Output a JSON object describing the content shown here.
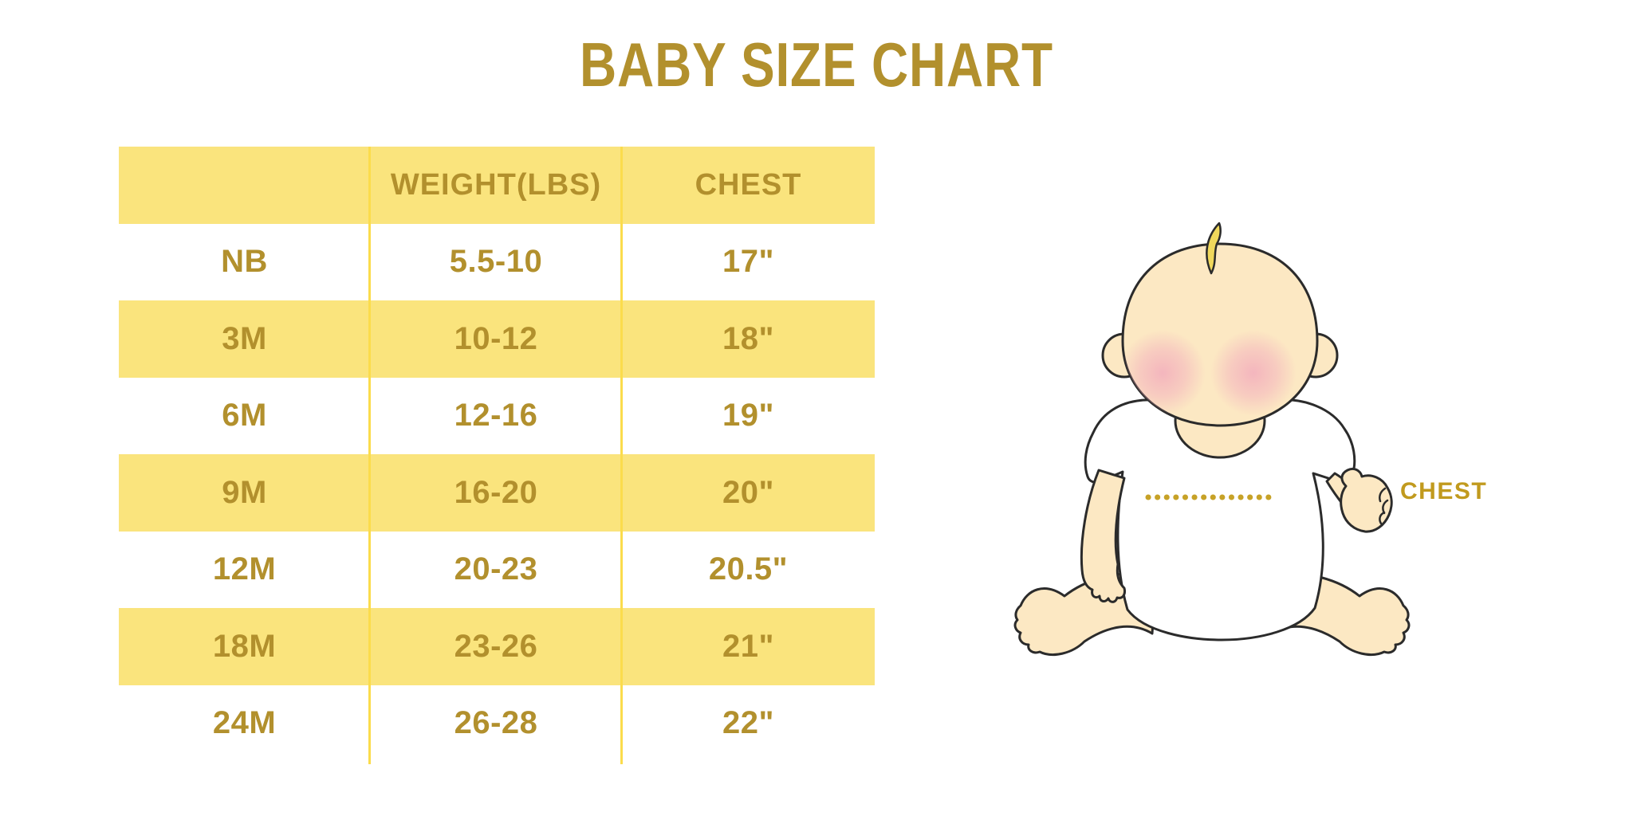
{
  "title": {
    "text": "BABY SIZE CHART",
    "color": "#B2902D"
  },
  "chart_data": {
    "type": "table",
    "title": "BABY SIZE CHART",
    "columns": [
      "",
      "WEIGHT(LBS)",
      "CHEST"
    ],
    "rows": [
      [
        "NB",
        "5.5-10",
        "17\""
      ],
      [
        "3M",
        "10-12",
        "18\""
      ],
      [
        "6M",
        "12-16",
        "19\""
      ],
      [
        "9M",
        "16-20",
        "20\""
      ],
      [
        "12M",
        "20-23",
        "20.5\""
      ],
      [
        "18M",
        "23-26",
        "21\""
      ],
      [
        "24M",
        "26-28",
        "22\""
      ]
    ]
  },
  "table_style": {
    "row_yellow": "#FAE47D",
    "row_white": "#FFFFFF",
    "divider_color": "#FBDC4C",
    "text_color": "#B2902D"
  },
  "illustration": {
    "name": "seated-baby-with-chest-measurement",
    "chest_label": "CHEST",
    "chest_label_color": "#C19A1E",
    "colors": {
      "skin": "#FCE8C3",
      "blush": "#F2A9BC",
      "hair": "#F0D85C",
      "outline": "#2B2B2B",
      "shirt": "#FFFFFF",
      "dotted_line": "#C7A227"
    }
  }
}
